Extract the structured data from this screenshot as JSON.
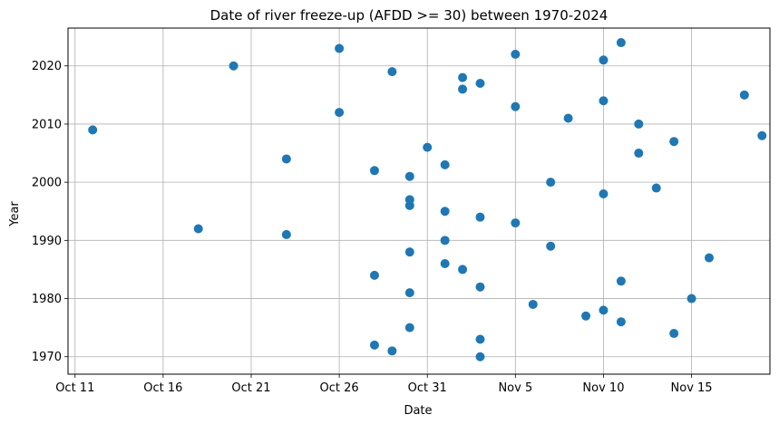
{
  "chart_data": {
    "type": "scatter",
    "title": "Date of river freeze-up (AFDD >= 30) between 1970-2024",
    "xlabel": "Date",
    "ylabel": "Year",
    "grid": true,
    "marker_color": "#1f77b4",
    "x_tick_labels": [
      "Oct 11",
      "Oct 16",
      "Oct 21",
      "Oct 26",
      "Oct 31",
      "Nov 5",
      "Nov 10",
      "Nov 15"
    ],
    "y_tick_labels": [
      "1970",
      "1980",
      "1990",
      "2000",
      "2010",
      "2020"
    ],
    "xlim": [
      "Oct 11",
      "Nov 20"
    ],
    "ylim": [
      1967,
      2026.5
    ],
    "points": [
      {
        "date": "Nov 3",
        "year": 1970
      },
      {
        "date": "Oct 29",
        "year": 1971
      },
      {
        "date": "Oct 28",
        "year": 1972
      },
      {
        "date": "Nov 3",
        "year": 1973
      },
      {
        "date": "Nov 14",
        "year": 1974
      },
      {
        "date": "Oct 30",
        "year": 1975
      },
      {
        "date": "Nov 11",
        "year": 1976
      },
      {
        "date": "Nov 9",
        "year": 1977
      },
      {
        "date": "Nov 10",
        "year": 1978
      },
      {
        "date": "Nov 6",
        "year": 1979
      },
      {
        "date": "Nov 15",
        "year": 1980
      },
      {
        "date": "Oct 30",
        "year": 1981
      },
      {
        "date": "Nov 3",
        "year": 1982
      },
      {
        "date": "Nov 11",
        "year": 1983
      },
      {
        "date": "Oct 28",
        "year": 1984
      },
      {
        "date": "Nov 2",
        "year": 1985
      },
      {
        "date": "Nov 1",
        "year": 1986
      },
      {
        "date": "Nov 16",
        "year": 1987
      },
      {
        "date": "Oct 30",
        "year": 1988
      },
      {
        "date": "Nov 7",
        "year": 1989
      },
      {
        "date": "Nov 1",
        "year": 1990
      },
      {
        "date": "Oct 23",
        "year": 1991
      },
      {
        "date": "Oct 18",
        "year": 1992
      },
      {
        "date": "Nov 5",
        "year": 1993
      },
      {
        "date": "Nov 3",
        "year": 1994
      },
      {
        "date": "Nov 1",
        "year": 1995
      },
      {
        "date": "Oct 30",
        "year": 1996
      },
      {
        "date": "Oct 30",
        "year": 1997
      },
      {
        "date": "Nov 10",
        "year": 1998
      },
      {
        "date": "Nov 13",
        "year": 1999
      },
      {
        "date": "Nov 7",
        "year": 2000
      },
      {
        "date": "Oct 30",
        "year": 2001
      },
      {
        "date": "Oct 28",
        "year": 2002
      },
      {
        "date": "Nov 1",
        "year": 2003
      },
      {
        "date": "Oct 23",
        "year": 2004
      },
      {
        "date": "Nov 12",
        "year": 2005
      },
      {
        "date": "Oct 31",
        "year": 2006
      },
      {
        "date": "Nov 14",
        "year": 2007
      },
      {
        "date": "Nov 19",
        "year": 2008
      },
      {
        "date": "Oct 12",
        "year": 2009
      },
      {
        "date": "Nov 12",
        "year": 2010
      },
      {
        "date": "Nov 8",
        "year": 2011
      },
      {
        "date": "Oct 26",
        "year": 2012
      },
      {
        "date": "Nov 5",
        "year": 2013
      },
      {
        "date": "Nov 10",
        "year": 2014
      },
      {
        "date": "Nov 18",
        "year": 2015
      },
      {
        "date": "Nov 2",
        "year": 2016
      },
      {
        "date": "Nov 3",
        "year": 2017
      },
      {
        "date": "Nov 2",
        "year": 2018
      },
      {
        "date": "Oct 29",
        "year": 2019
      },
      {
        "date": "Oct 20",
        "year": 2020
      },
      {
        "date": "Nov 10",
        "year": 2021
      },
      {
        "date": "Nov 5",
        "year": 2022
      },
      {
        "date": "Oct 26",
        "year": 2023
      },
      {
        "date": "Nov 11",
        "year": 2024
      }
    ]
  }
}
